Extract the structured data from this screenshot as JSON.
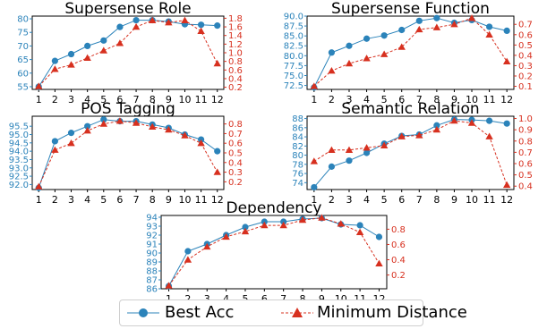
{
  "colors": {
    "best_acc": "#2b83ba",
    "min_dist": "#d7301f",
    "axis_left": "#2b83ba",
    "axis_right": "#d7301f"
  },
  "legend": {
    "best_acc_label": "Best Acc",
    "min_dist_label": "Minimum Distance"
  },
  "chart_data": [
    {
      "type": "line",
      "title": "Supersense Role",
      "x": [
        1,
        2,
        3,
        4,
        5,
        6,
        7,
        8,
        9,
        10,
        11,
        12
      ],
      "ylim_left": [
        54,
        81
      ],
      "yticks_left": [
        55,
        60,
        65,
        70,
        75,
        80
      ],
      "ylim_right": [
        0.15,
        1.85
      ],
      "yticks_right": [
        0.2,
        0.4,
        0.6,
        0.8,
        1.0,
        1.2,
        1.4,
        1.6,
        1.8
      ],
      "series": [
        {
          "name": "Best Acc",
          "axis": "left",
          "values": [
            55,
            64.5,
            67,
            70,
            72,
            77,
            79.5,
            79.5,
            79,
            78,
            77.8,
            77.5
          ]
        },
        {
          "name": "Minimum Distance",
          "axis": "right",
          "values": [
            0.22,
            0.62,
            0.72,
            0.88,
            1.05,
            1.22,
            1.6,
            1.75,
            1.7,
            1.75,
            1.5,
            0.75
          ]
        }
      ]
    },
    {
      "type": "line",
      "title": "Supersense Function",
      "x": [
        1,
        2,
        3,
        4,
        5,
        6,
        7,
        8,
        9,
        10,
        11,
        12
      ],
      "ylim_left": [
        71.5,
        90
      ],
      "yticks_left": [
        72.5,
        75.0,
        77.5,
        80.0,
        82.5,
        85.0,
        87.5,
        90.0
      ],
      "ylim_right": [
        0.07,
        0.78
      ],
      "yticks_right": [
        0.1,
        0.2,
        0.3,
        0.4,
        0.5,
        0.6,
        0.7
      ],
      "series": [
        {
          "name": "Best Acc",
          "axis": "left",
          "values": [
            72,
            80.8,
            82.5,
            84.3,
            85.1,
            86.5,
            88.8,
            89.5,
            88.3,
            89,
            87.3,
            86.3
          ]
        },
        {
          "name": "Minimum Distance",
          "axis": "right",
          "values": [
            0.1,
            0.25,
            0.32,
            0.37,
            0.41,
            0.48,
            0.65,
            0.67,
            0.7,
            0.76,
            0.6,
            0.34
          ]
        }
      ]
    },
    {
      "type": "line",
      "title": "POS Tagging",
      "x": [
        1,
        2,
        3,
        4,
        5,
        6,
        7,
        8,
        9,
        10,
        11,
        12
      ],
      "ylim_left": [
        91.7,
        96.1
      ],
      "yticks_left": [
        92.0,
        92.5,
        93.0,
        93.5,
        94.0,
        94.5,
        95.0,
        95.5
      ],
      "ylim_right": [
        0.12,
        0.88
      ],
      "yticks_right": [
        0.2,
        0.3,
        0.4,
        0.5,
        0.6,
        0.7,
        0.8
      ],
      "series": [
        {
          "name": "Best Acc",
          "axis": "left",
          "values": [
            91.8,
            94.6,
            95.1,
            95.5,
            95.9,
            95.8,
            95.8,
            95.6,
            95.4,
            95,
            94.7,
            94
          ]
        },
        {
          "name": "Minimum Distance",
          "axis": "right",
          "values": [
            0.15,
            0.53,
            0.6,
            0.73,
            0.8,
            0.83,
            0.81,
            0.77,
            0.74,
            0.68,
            0.6,
            0.3
          ]
        }
      ]
    },
    {
      "type": "line",
      "title": "Semantic Relation",
      "x": [
        1,
        2,
        3,
        4,
        5,
        6,
        7,
        8,
        9,
        10,
        11,
        12
      ],
      "ylim_left": [
        72.5,
        88.5
      ],
      "yticks_left": [
        74,
        76,
        78,
        80,
        82,
        84,
        86,
        88
      ],
      "ylim_right": [
        0.37,
        1.02
      ],
      "yticks_right": [
        0.4,
        0.5,
        0.6,
        0.7,
        0.8,
        0.9,
        1.0
      ],
      "series": [
        {
          "name": "Best Acc",
          "axis": "left",
          "values": [
            73,
            77.5,
            78.8,
            80.5,
            82.5,
            84.2,
            84.5,
            86.5,
            87.8,
            87.7,
            87.5,
            86.9
          ]
        },
        {
          "name": "Minimum Distance",
          "axis": "right",
          "values": [
            0.62,
            0.72,
            0.72,
            0.74,
            0.76,
            0.84,
            0.85,
            0.9,
            0.98,
            0.96,
            0.84,
            0.41
          ]
        }
      ]
    },
    {
      "type": "line",
      "title": "Dependency",
      "x": [
        1,
        2,
        3,
        4,
        5,
        6,
        7,
        8,
        9,
        10,
        11,
        12
      ],
      "ylim_left": [
        86,
        94.2
      ],
      "yticks_left": [
        86,
        87,
        88,
        89,
        90,
        91,
        92,
        93,
        94
      ],
      "ylim_right": [
        0.02,
        0.98
      ],
      "yticks_right": [
        0.2,
        0.4,
        0.6,
        0.8
      ],
      "series": [
        {
          "name": "Best Acc",
          "axis": "left",
          "values": [
            86.3,
            90.2,
            91,
            92,
            92.9,
            93.5,
            93.5,
            93.8,
            93.9,
            93.2,
            93.1,
            91.8
          ]
        },
        {
          "name": "Minimum Distance",
          "axis": "right",
          "values": [
            0.06,
            0.4,
            0.57,
            0.7,
            0.77,
            0.85,
            0.85,
            0.92,
            0.95,
            0.87,
            0.76,
            0.35
          ]
        }
      ]
    }
  ]
}
